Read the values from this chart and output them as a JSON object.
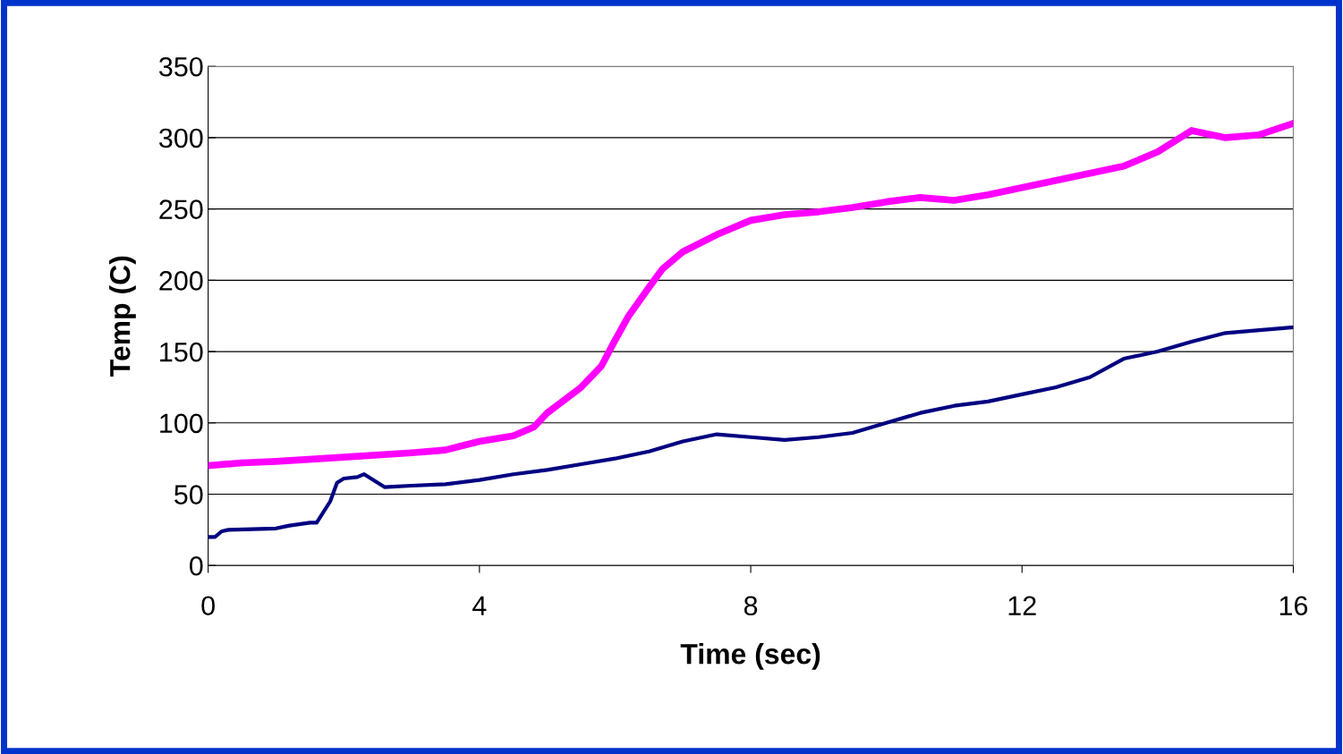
{
  "chart_data": {
    "type": "line",
    "xlabel": "Time (sec)",
    "ylabel": "Temp (C)",
    "xlim": [
      0,
      16
    ],
    "xticks": [
      0,
      4,
      8,
      12,
      16
    ],
    "ylim": [
      0,
      350
    ],
    "yticks": [
      0,
      50,
      100,
      150,
      200,
      250,
      300,
      350
    ],
    "grid": "y",
    "marker": "none",
    "line_style": "solid",
    "series": [
      {
        "color": "#ff00ff",
        "x": [
          0,
          0.5,
          1,
          2,
          3,
          3.5,
          4,
          4.5,
          4.8,
          5,
          5.5,
          5.8,
          6,
          6.2,
          6.5,
          6.7,
          7,
          7.5,
          8,
          8.5,
          9,
          9.5,
          10,
          10.5,
          11,
          11.5,
          12,
          12.5,
          13,
          13.5,
          14,
          14.5,
          15,
          15.5,
          16
        ],
        "values": [
          70,
          72,
          73,
          76,
          79,
          81,
          87,
          91,
          97,
          107,
          125,
          140,
          158,
          175,
          195,
          208,
          220,
          232,
          242,
          246,
          248,
          251,
          255,
          258,
          256,
          260,
          265,
          270,
          275,
          280,
          290,
          305,
          300,
          302,
          310
        ]
      },
      {
        "color": "#000080",
        "x": [
          0,
          0.1,
          0.2,
          0.3,
          1,
          1.2,
          1.5,
          1.6,
          1.8,
          1.9,
          2.0,
          2.2,
          2.3,
          2.5,
          2.6,
          3,
          3.5,
          4,
          4.5,
          5,
          5.5,
          6,
          6.5,
          7,
          7.5,
          8,
          8.5,
          9,
          9.5,
          10,
          10.5,
          11,
          11.5,
          12,
          12.5,
          13,
          13.5,
          14,
          14.5,
          15,
          15.5,
          16
        ],
        "values": [
          20,
          20,
          24,
          25,
          26,
          28,
          30,
          30,
          45,
          58,
          61,
          62,
          64,
          58,
          55,
          56,
          57,
          60,
          64,
          67,
          71,
          75,
          80,
          87,
          92,
          90,
          88,
          90,
          93,
          100,
          107,
          112,
          115,
          120,
          125,
          132,
          145,
          150,
          157,
          163,
          165,
          167
        ]
      }
    ]
  }
}
